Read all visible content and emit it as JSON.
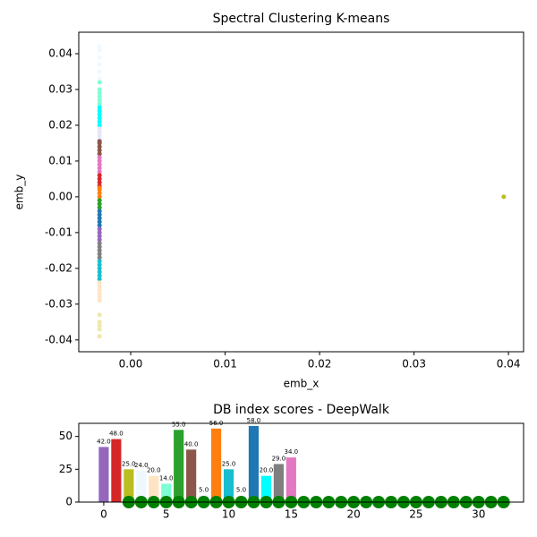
{
  "chart_data": [
    {
      "type": "scatter",
      "title": "Spectral Clustering K-means",
      "xlabel": "emb_x",
      "ylabel": "emb_y",
      "xlim": [
        -0.0055,
        0.0416
      ],
      "ylim": [
        -0.0433,
        0.046
      ],
      "xticks": [
        {
          "value": 0,
          "label": "0.00"
        },
        0.01,
        0.02,
        0.03,
        0.04
      ],
      "yticks": [
        {
          "value": -0.04,
          "label": "-0.04"
        },
        {
          "value": -0.03,
          "label": "-0.03"
        },
        {
          "value": -0.02,
          "label": "-0.02"
        },
        {
          "value": -0.01,
          "label": "-0.01"
        },
        {
          "value": 0,
          "label": "0.00"
        },
        0.01,
        0.02,
        0.03,
        0.04
      ],
      "series": [
        {
          "color": "#f0f8ff",
          "x": [
            -0.0033,
            -0.0033,
            -0.0033,
            -0.0033,
            -0.0033,
            -0.0033
          ],
          "values": [
            0.042,
            0.041,
            0.039,
            0.037,
            0.035,
            0.033
          ]
        },
        {
          "color": "#7fffd4",
          "x": [
            -0.0033,
            -0.0033,
            -0.0033,
            -0.0033,
            -0.0033,
            -0.0033
          ],
          "values": [
            0.032,
            0.03,
            0.029,
            0.028,
            0.027,
            0.026
          ]
        },
        {
          "color": "#00ffff",
          "x": [
            -0.0033,
            -0.0033,
            -0.0033,
            -0.0033,
            -0.0033,
            -0.0033
          ],
          "values": [
            0.025,
            0.024,
            0.023,
            0.022,
            0.021,
            0.02
          ]
        },
        {
          "color": "#e6e6fa",
          "x": [
            -0.0033,
            -0.0033,
            -0.0033,
            -0.0033
          ],
          "values": [
            0.019,
            0.018,
            0.017,
            0.016
          ]
        },
        {
          "color": "#8c564b",
          "x": [
            -0.0033,
            -0.0033,
            -0.0033,
            -0.0033,
            -0.0033
          ],
          "values": [
            0.0155,
            0.015,
            0.014,
            0.013,
            0.012
          ]
        },
        {
          "color": "#e377c2",
          "x": [
            -0.0033,
            -0.0033,
            -0.0033,
            -0.0033,
            -0.0033
          ],
          "values": [
            0.011,
            0.01,
            0.009,
            0.008,
            0.007
          ]
        },
        {
          "color": "#d62728",
          "x": [
            -0.0033,
            -0.0033,
            -0.0033,
            -0.0033
          ],
          "values": [
            0.006,
            0.005,
            0.004,
            0.003
          ]
        },
        {
          "color": "#ff7f0e",
          "x": [
            -0.0033,
            -0.0033,
            -0.0033,
            -0.0033
          ],
          "values": [
            0.0025,
            0.002,
            0.001,
            0
          ]
        },
        {
          "color": "#2ca02c",
          "x": [
            -0.0033,
            -0.0033,
            -0.0033
          ],
          "values": [
            -0.001,
            -0.002,
            -0.003
          ]
        },
        {
          "color": "#1f77b4",
          "x": [
            -0.0033,
            -0.0033,
            -0.0033,
            -0.0033,
            -0.0033
          ],
          "values": [
            -0.004,
            -0.005,
            -0.006,
            -0.007,
            -0.008
          ]
        },
        {
          "color": "#9467bd",
          "x": [
            -0.0033,
            -0.0033,
            -0.0033,
            -0.0033
          ],
          "values": [
            -0.009,
            -0.01,
            -0.011,
            -0.012
          ]
        },
        {
          "color": "#7f7f7f",
          "x": [
            -0.0033,
            -0.0033,
            -0.0033,
            -0.0033,
            -0.0033
          ],
          "values": [
            -0.013,
            -0.014,
            -0.015,
            -0.016,
            -0.017
          ]
        },
        {
          "color": "#17becf",
          "x": [
            -0.0033,
            -0.0033,
            -0.0033,
            -0.0033,
            -0.0033,
            -0.0033
          ],
          "values": [
            -0.018,
            -0.019,
            -0.02,
            -0.021,
            -0.022,
            -0.023
          ]
        },
        {
          "color": "#ffe4c4",
          "x": [
            -0.0033,
            -0.0033,
            -0.0033,
            -0.0033,
            -0.0033,
            -0.0033
          ],
          "values": [
            -0.024,
            -0.025,
            -0.026,
            -0.027,
            -0.028,
            -0.029
          ]
        },
        {
          "color": "#eee8aa",
          "x": [
            -0.0033,
            -0.0033,
            -0.0033,
            -0.0033,
            -0.0033
          ],
          "values": [
            -0.033,
            -0.035,
            -0.036,
            -0.037,
            -0.039
          ]
        },
        {
          "color": "#bcbd22",
          "x": [
            0.0395
          ],
          "values": [
            0
          ]
        }
      ]
    },
    {
      "type": "bar",
      "title": "DB index scores - DeepWalk",
      "xlim": [
        -2,
        33.6
      ],
      "ylim": [
        0,
        60
      ],
      "xticks": [
        0,
        5,
        10,
        15,
        20,
        25,
        30
      ],
      "yticks": [
        0,
        25,
        50
      ],
      "series": [
        {
          "type": "bar",
          "x": [
            0,
            1,
            2,
            3,
            4,
            5,
            6,
            7,
            8,
            9,
            10,
            11,
            12,
            13,
            14,
            15
          ],
          "values": [
            42,
            48,
            25,
            24,
            20,
            14,
            55,
            40,
            5,
            56,
            25,
            5,
            58,
            20,
            29,
            34
          ],
          "value_labels": [
            "42.0",
            "48.0",
            "25.0",
            "24.0",
            "20.0",
            "14.0",
            "55.0",
            "40.0",
            "5.0",
            "56.0",
            "25.0",
            "5.0",
            "58.0",
            "20.0",
            "29.0",
            "34.0"
          ],
          "colors": [
            "#9467bd",
            "#d62728",
            "#bcbd22",
            "#f0f8ff",
            "#ffe4c4",
            "#7fffd4",
            "#2ca02c",
            "#8c564b",
            "#e6e6fa",
            "#ff7f0e",
            "#17becf",
            "#f5f5f5",
            "#1f77b4",
            "#00ffff",
            "#7f7f7f",
            "#e377c2"
          ]
        },
        {
          "type": "scatter",
          "color": "#008000",
          "x": [
            2,
            3,
            4,
            5,
            6,
            7,
            8,
            9,
            10,
            11,
            12,
            13,
            14,
            15,
            16,
            17,
            18,
            19,
            20,
            21,
            22,
            23,
            24,
            25,
            26,
            27,
            28,
            29,
            30,
            31,
            32
          ],
          "values": [
            0,
            0,
            0,
            0,
            0,
            0,
            0,
            0,
            0,
            0,
            0,
            0,
            0,
            0,
            0,
            0,
            0,
            0,
            0,
            0,
            0,
            0,
            0,
            0,
            0,
            0,
            0,
            0,
            0,
            0,
            0
          ]
        }
      ]
    }
  ]
}
